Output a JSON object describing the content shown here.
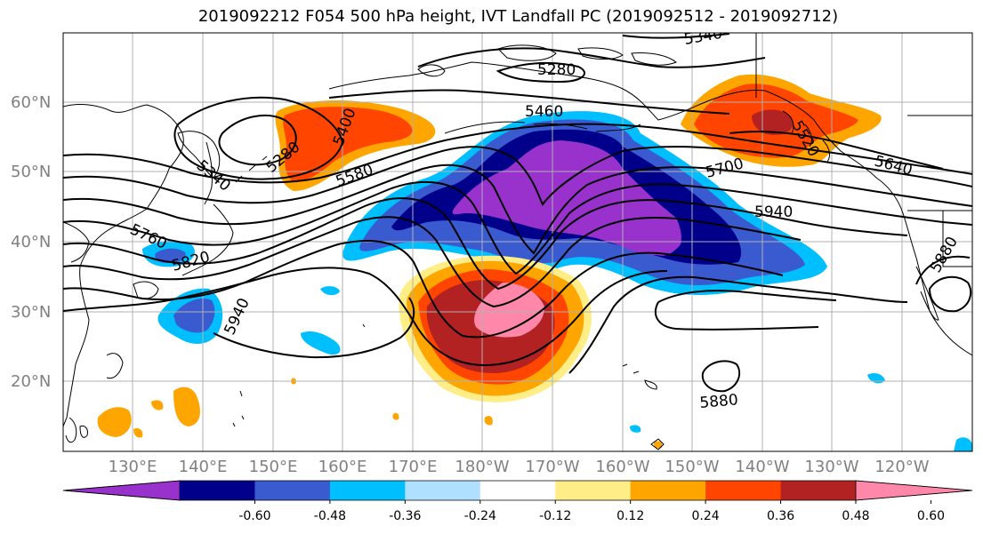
{
  "title": "2019092212 F054 500 hPa height, IVT Landfall PC (2019092512 - 2019092712)",
  "lat_labels": [
    "60°N",
    "50°N",
    "40°N",
    "30°N",
    "20°N"
  ],
  "lon_labels": [
    "130°E",
    "140°E",
    "150°E",
    "160°E",
    "170°E",
    "180°W",
    "170°W",
    "160°W",
    "150°W",
    "140°W",
    "130°W",
    "120°W"
  ],
  "colorbar": {
    "colors": [
      "#9932cc",
      "#00008b",
      "#3a5bd0",
      "#00bfff",
      "#b0e0ff",
      "#ffffff",
      "#ffee88",
      "#ffa500",
      "#ff4500",
      "#b22222",
      "#ff88aa"
    ],
    "tick_labels": [
      "-0.60",
      "-0.48",
      "-0.36",
      "-0.24",
      "-0.12",
      "0.12",
      "0.24",
      "0.36",
      "0.48",
      "0.60"
    ]
  },
  "contour_labels": [
    "5340",
    "5280",
    "5460",
    "5280",
    "5400",
    "5340",
    "5580",
    "5760",
    "5820",
    "5940",
    "5700",
    "5640",
    "5940",
    "5880",
    "5880",
    "5520"
  ]
}
